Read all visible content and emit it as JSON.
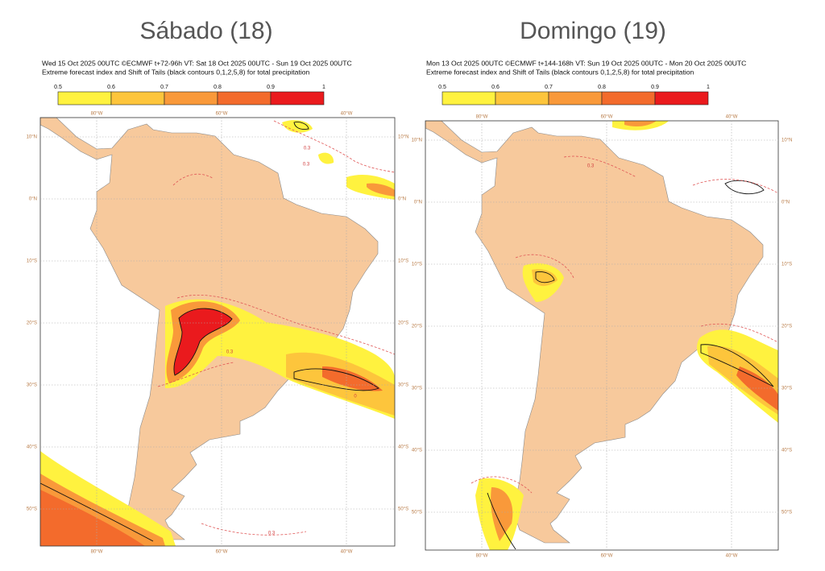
{
  "panels": [
    {
      "title": "Sábado (18)",
      "header": [
        "Wed 15 Oct 2025 00UTC ©ECMWF t+72-96h  VT: Sat 18 Oct 2025 00UTC - Sun 19 Oct 2025 00UTC",
        "Extreme forecast index and Shift of Tails (black contours 0,1,2,5,8) for total precipitation"
      ],
      "colorbar": {
        "ticks": [
          0.5,
          0.6,
          0.7,
          0.8,
          0.9,
          1
        ],
        "colors": [
          "#fff23f",
          "#fdc53c",
          "#f9993a",
          "#f36b2c",
          "#ea1a1d"
        ]
      },
      "lat_labels": [
        "10°N",
        "0°N",
        "10°S",
        "20°S",
        "30°S",
        "40°S",
        "50°S"
      ],
      "lon_labels": [
        "80°W",
        "60°W",
        "40°W"
      ],
      "contour_labels": [
        "0.3",
        "0.3",
        "0.3",
        "0.3",
        "0"
      ]
    },
    {
      "title": "Domingo (19)",
      "header": [
        "Mon 13 Oct 2025 00UTC ©ECMWF t+144-168h  VT: Sun 19 Oct 2025 00UTC - Mon 20 Oct 2025 00UTC",
        "Extreme forecast index and Shift of Tails (black contours 0,1,2,5,8) for total precipitation"
      ],
      "colorbar": {
        "ticks": [
          0.5,
          0.6,
          0.7,
          0.8,
          0.9,
          1
        ],
        "colors": [
          "#fff23f",
          "#fdc53c",
          "#f9993a",
          "#f36b2c",
          "#ea1a1d"
        ]
      },
      "lat_labels": [
        "10°N",
        "0°N",
        "10°S",
        "20°S",
        "30°S",
        "40°S",
        "50°S"
      ],
      "lon_labels": [
        "80°W",
        "60°W",
        "40°W"
      ],
      "contour_labels": [
        "0.3"
      ]
    }
  ]
}
